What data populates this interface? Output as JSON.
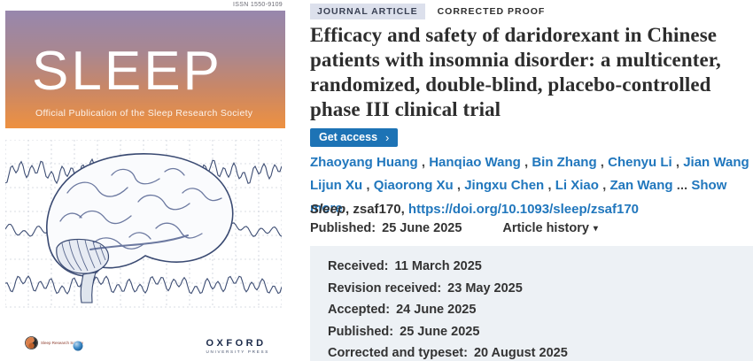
{
  "cover": {
    "issn": "ISSN 1550-9109",
    "journal_name": "SLEEP",
    "tagline": "Official Publication of the Sleep Research Society",
    "srs_logo_text": "Sleep Research Society",
    "publisher": "OXFORD",
    "publisher_sub": "UNIVERSITY PRESS"
  },
  "article": {
    "type_badge": "JOURNAL ARTICLE",
    "status_badge": "CORRECTED PROOF",
    "title": "Efficacy and safety of daridorexant in Chinese patients with insomnia disorder: a multicenter, randomized, double-blind, placebo-controlled phase III clinical trial",
    "get_access_label": "Get access",
    "authors": [
      "Zhaoyang Huang",
      "Hanqiao Wang",
      "Bin Zhang",
      "Chenyu Li",
      "Jian Wang",
      "Lijun Xu",
      "Qiaorong Xu",
      "Jingxu Chen",
      "Li Xiao",
      "Zan Wang"
    ],
    "authors_ellipsis": "...",
    "show_more_label": "Show more",
    "journal_italic": "Sleep",
    "citation_mid": ", zsaf170, ",
    "doi_url": "https://doi.org/10.1093/sleep/zsaf170",
    "published_label": "Published:",
    "published_date": "25 June 2025",
    "article_history_label": "Article history",
    "history": [
      {
        "label": "Received:",
        "value": "11 March 2025"
      },
      {
        "label": "Revision received:",
        "value": "23 May 2025"
      },
      {
        "label": "Accepted:",
        "value": "24 June 2025"
      },
      {
        "label": "Published:",
        "value": "25 June 2025"
      },
      {
        "label": "Corrected and typeset:",
        "value": "20 August 2025"
      }
    ]
  },
  "colors": {
    "link_blue": "#2177bd",
    "button_blue": "#1d73b5",
    "badge_bg": "#dce0ec",
    "history_bg": "#edf1f5",
    "gradient_top": "#9787ad",
    "gradient_bottom": "#ee9140"
  }
}
